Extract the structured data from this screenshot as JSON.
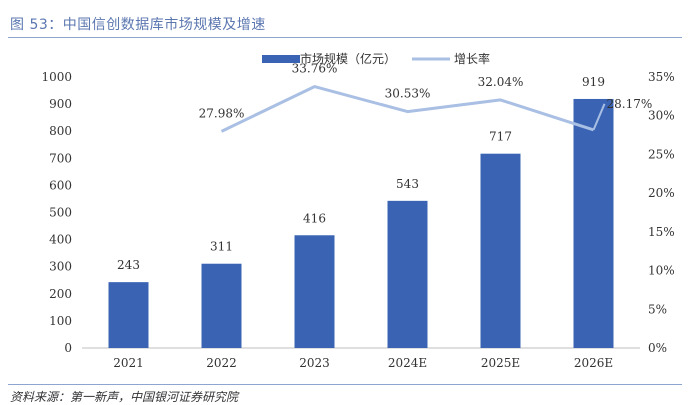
{
  "figure": {
    "title": "图 53：中国信创数据库市场规模及增速",
    "source": "资料来源：第一新声，中国银河证券研究院"
  },
  "chart_data": {
    "type": "bar",
    "categories": [
      "2021",
      "2022",
      "2023",
      "2024E",
      "2025E",
      "2026E"
    ],
    "series": [
      {
        "name": "市场规模（亿元）",
        "type": "bar",
        "axis": "left",
        "values": [
          243,
          311,
          416,
          543,
          717,
          919
        ],
        "labels": [
          "243",
          "311",
          "416",
          "543",
          "717",
          "919"
        ]
      },
      {
        "name": "增长率",
        "type": "line",
        "axis": "right",
        "values": [
          null,
          27.98,
          33.76,
          30.53,
          32.04,
          28.17
        ],
        "labels": [
          "",
          "27.98%",
          "33.76%",
          "30.53%",
          "32.04%",
          "28.17%"
        ]
      }
    ],
    "y_left": {
      "min": 0,
      "max": 1000,
      "ticks": [
        "0",
        "100",
        "200",
        "300",
        "400",
        "500",
        "600",
        "700",
        "800",
        "900",
        "1000"
      ]
    },
    "y_right": {
      "min": 0,
      "max": 35,
      "ticks": [
        "0%",
        "5%",
        "10%",
        "15%",
        "20%",
        "25%",
        "30%",
        "35%"
      ]
    },
    "legend_position": "top",
    "grid": false,
    "colors": {
      "bar": "#3a64b3",
      "line": "#a9bfe3"
    }
  }
}
